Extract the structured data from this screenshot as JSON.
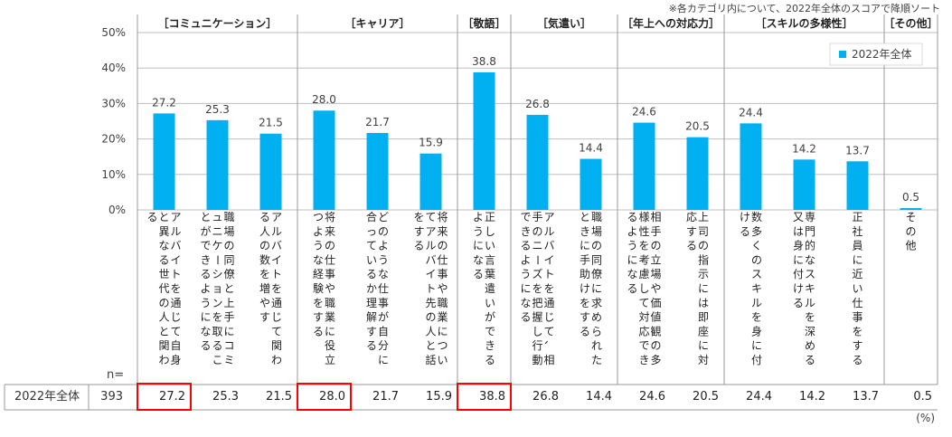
{
  "note": "※各カテゴリ内について、2022年全体のスコアで降順ソート",
  "unit": "(%)",
  "n_label": "n=",
  "row_label": "2022年全体",
  "n_value": "393",
  "colors": {
    "bar": "#00b0f0",
    "highlight": "#ff0000",
    "grid": "#bfbfbf",
    "text": "#404040"
  },
  "chart_data": {
    "type": "bar",
    "ylim": [
      0,
      50
    ],
    "yticks": [
      "0%",
      "10%",
      "20%",
      "30%",
      "40%",
      "50%"
    ],
    "legend": {
      "label": "2022年全体",
      "position": "top-right"
    },
    "grid": true,
    "groups": [
      {
        "label": "［コミュニケーション］",
        "count": 3
      },
      {
        "label": "［キャリア］",
        "count": 3
      },
      {
        "label": "［敬語］",
        "count": 1
      },
      {
        "label": "［気遣い］",
        "count": 2
      },
      {
        "label": "［年上への対応力］",
        "count": 2
      },
      {
        "label": "［スキルの多様性］",
        "count": 3
      },
      {
        "label": "［その他］",
        "count": 1
      }
    ],
    "categories": [
      "アルバイトを通じて自身と異なる世代の人と関わる",
      "職場の同僚と上手にコミュニケーションを取ることができるようになる",
      "アルバイトを通じて関わる人の数を増やす",
      "将来の仕事や職業に役立つような経験をする",
      "どのような仕事が自分に合っているか理解する",
      "将来の仕事や職業についてアルバイト先の人と話をする",
      "正しい言葉遣いができるようになる",
      "アルバイトを通じて、相手のニーズを把握し行動できるようになる",
      "職場の同僚に求められたときに手助けをする",
      "相手の立場や価値観の多様性を考慮して対応できるようになる",
      "上司の指示には即座に対応する",
      "数多くのスキルを身に付ける",
      "専門的なスキルを深める又は身に付ける",
      "正社員に近い仕事をする",
      "その他"
    ],
    "values": [
      27.2,
      25.3,
      21.5,
      28.0,
      21.7,
      15.9,
      38.8,
      26.8,
      14.4,
      24.6,
      20.5,
      24.4,
      14.2,
      13.7,
      0.5
    ],
    "value_labels": [
      "27.2",
      "25.3",
      "21.5",
      "28.0",
      "21.7",
      "15.9",
      "38.8",
      "26.8",
      "14.4",
      "24.6",
      "20.5",
      "24.4",
      "14.2",
      "13.7",
      "0.5"
    ],
    "highlighted": [
      0,
      3,
      6
    ]
  }
}
